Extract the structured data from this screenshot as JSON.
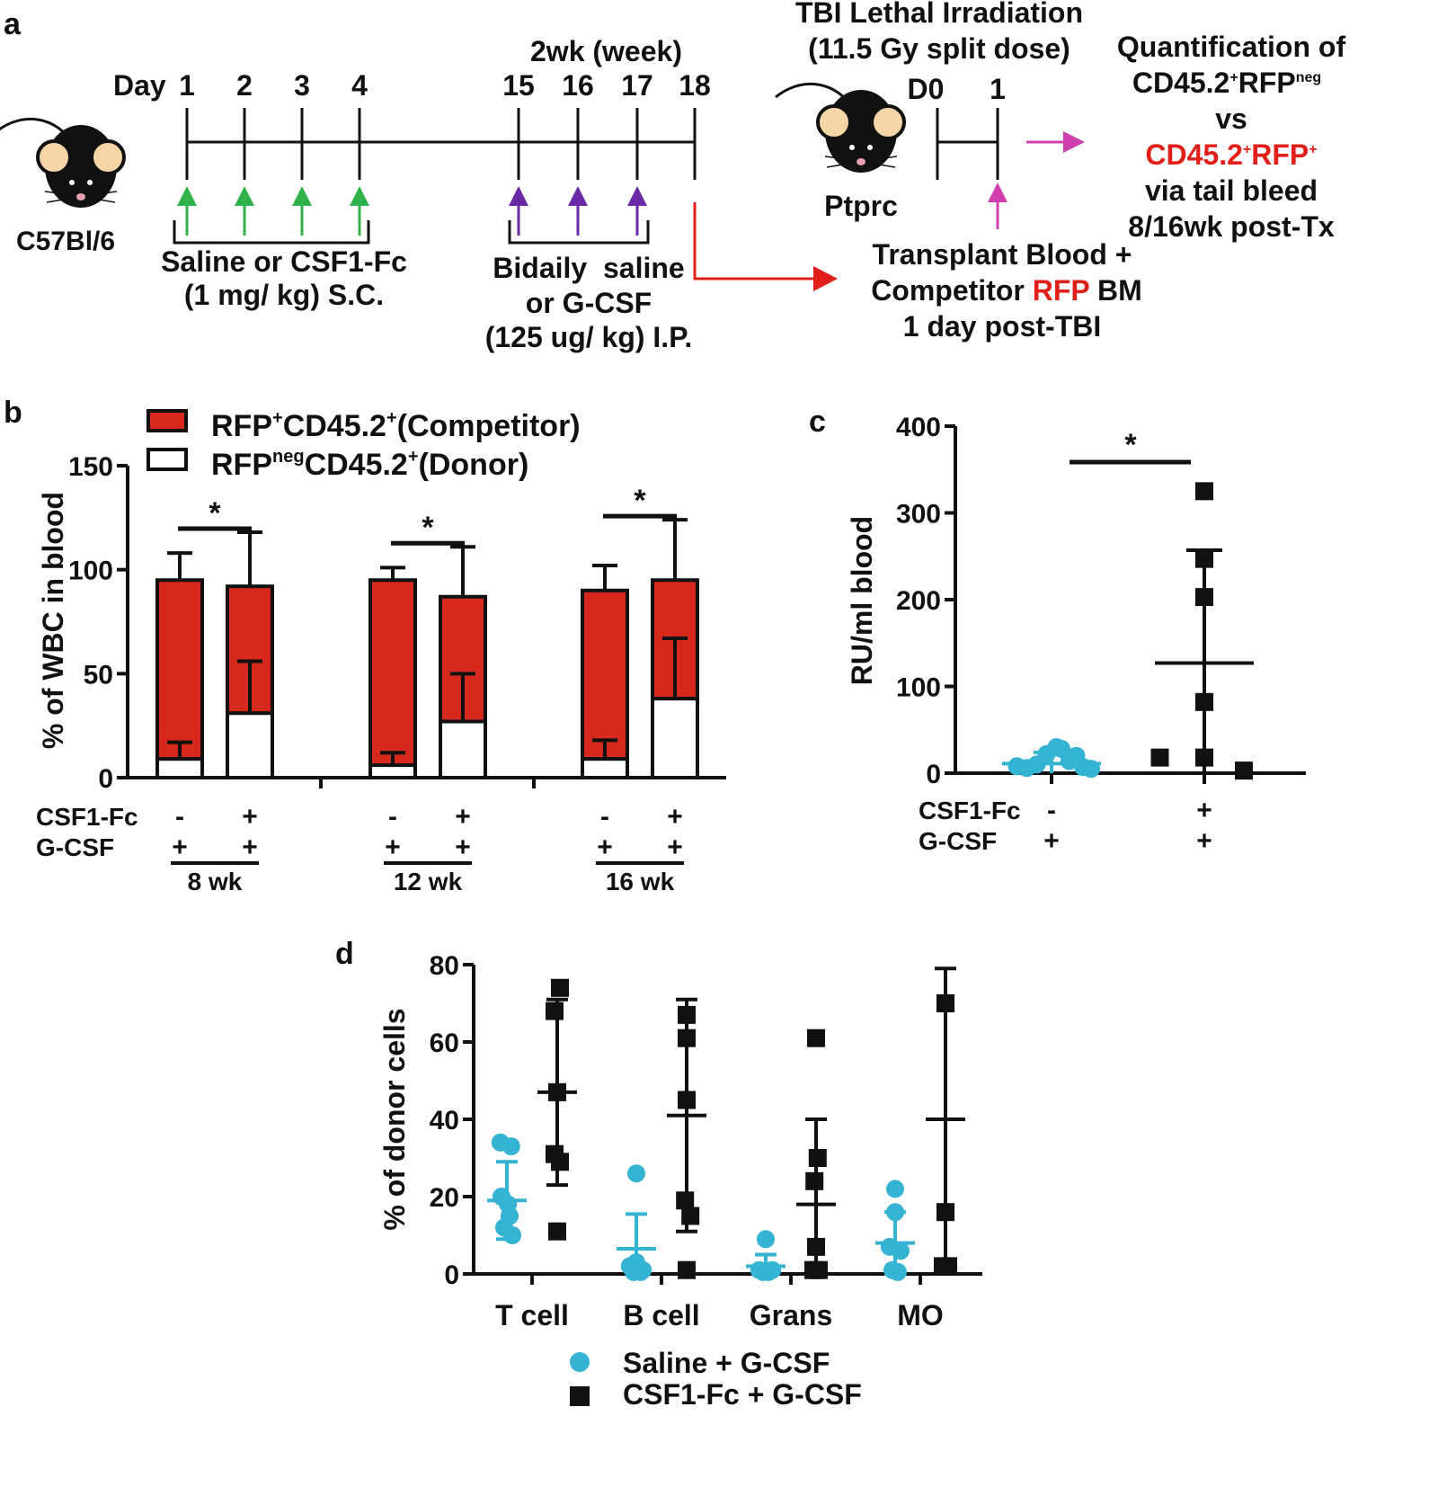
{
  "colors": {
    "red": "#d6281c",
    "cyan": "#35b3d3",
    "black": "#111111",
    "green": "#2db34a",
    "purple": "#6a2aa8",
    "magenta": "#cf3fae",
    "arrow_red": "#e02018"
  },
  "panels": {
    "a": "a",
    "b": "b",
    "c": "c",
    "d": "d"
  },
  "scheme": {
    "mouse1": "C57Bl/6",
    "day_label": "Day",
    "days": [
      "1",
      "2",
      "3",
      "4",
      "15",
      "16",
      "17",
      "18"
    ],
    "two_week": "2wk (week)",
    "saline_csf1_line1": "Saline or CSF1-Fc",
    "saline_csf1_line2": "(1 mg/ kg) S.C.",
    "bidaily_line1": "Bidaily  saline",
    "bidaily_line2": "or G-CSF",
    "bidaily_line3": "(125 ug/ kg) I.P.",
    "tbi_line1": "TBI Lethal Irradiation",
    "tbi_line2": "(11.5 Gy split dose)",
    "d0": "D0",
    "d1": "1",
    "mouse2": "Ptprc",
    "transplant_line1": "Transplant Blood +",
    "transplant_line2a": "Competitor ",
    "transplant_rfp": "RFP",
    "transplant_line2b": " BM",
    "transplant_line3": "1 day post-TBI",
    "quant_line1": "Quantification of",
    "quant_cd": "CD45.2",
    "quant_sup1": "+",
    "quant_rfp": "RFP",
    "quant_sup_neg": "neg",
    "quant_vs": "vs",
    "quant_red_cd": "CD45.2",
    "quant_red_rfp": "RFP",
    "quant_sup2": "+",
    "quant_sup3": "+",
    "quant_line4": "via tail bleed",
    "quant_line5": "8/16wk post-Tx"
  },
  "chart_data": [
    {
      "panel": "b",
      "type": "bar",
      "stacked": true,
      "ylabel": "% of WBC in blood",
      "ylim": [
        0,
        150
      ],
      "yticks": [
        "0",
        "50",
        "100",
        "150"
      ],
      "legend": {
        "competitor": {
          "a": "RFP",
          "sup1": "+",
          "b": "CD45.2",
          "sup2": "+",
          "c": "(Competitor)"
        },
        "donor": {
          "a": "RFP",
          "sup1": "neg",
          "b": "CD45.2",
          "sup2": "+",
          "c": "(Donor)"
        }
      },
      "row_labels": [
        "CSF1-Fc",
        "G-CSF"
      ],
      "groups": [
        {
          "label": "8 wk",
          "star": "*",
          "bars": [
            {
              "csf1": "-",
              "gcsf": "+",
              "donor": 9,
              "donor_err": 8,
              "total": 95,
              "total_err": 13
            },
            {
              "csf1": "+",
              "gcsf": "+",
              "donor": 31,
              "donor_err": 25,
              "total": 92,
              "total_err": 26
            }
          ]
        },
        {
          "label": "12 wk",
          "star": "*",
          "bars": [
            {
              "csf1": "-",
              "gcsf": "+",
              "donor": 6,
              "donor_err": 6,
              "total": 95,
              "total_err": 6
            },
            {
              "csf1": "+",
              "gcsf": "+",
              "donor": 27,
              "donor_err": 23,
              "total": 87,
              "total_err": 24
            }
          ]
        },
        {
          "label": "16 wk",
          "star": "*",
          "bars": [
            {
              "csf1": "-",
              "gcsf": "+",
              "donor": 9,
              "donor_err": 9,
              "total": 90,
              "total_err": 12
            },
            {
              "csf1": "+",
              "gcsf": "+",
              "donor": 38,
              "donor_err": 29,
              "total": 95,
              "total_err": 29
            }
          ]
        }
      ]
    },
    {
      "panel": "c",
      "type": "scatter",
      "ylabel": "RU/ml blood",
      "ylim": [
        0,
        400
      ],
      "yticks": [
        "0",
        "100",
        "200",
        "300",
        "400"
      ],
      "row_labels": [
        "CSF1-Fc",
        "G-CSF"
      ],
      "star": "*",
      "groups": [
        {
          "csf1": "-",
          "gcsf": "+",
          "color": "cyan",
          "marker": "circle",
          "mean": 11,
          "sd": 13,
          "points": [
            [
              -0.35,
              8
            ],
            [
              -0.25,
              6
            ],
            [
              -0.15,
              10
            ],
            [
              -0.05,
              22
            ],
            [
              0.05,
              30
            ],
            [
              0.1,
              28
            ],
            [
              0.18,
              14
            ],
            [
              0.25,
              20
            ],
            [
              0.32,
              7
            ],
            [
              0.4,
              5
            ]
          ]
        },
        {
          "csf1": "+",
          "gcsf": "+",
          "color": "black",
          "marker": "square",
          "mean": 127,
          "sd": 130,
          "points": [
            [
              -0.45,
              18
            ],
            [
              0,
              325
            ],
            [
              0,
              247
            ],
            [
              0,
              203
            ],
            [
              0,
              82
            ],
            [
              0,
              18
            ],
            [
              0.4,
              3
            ]
          ]
        }
      ]
    },
    {
      "panel": "d",
      "type": "scatter",
      "ylabel": "% of donor cells",
      "ylim": [
        0,
        80
      ],
      "yticks": [
        "0",
        "20",
        "40",
        "60",
        "80"
      ],
      "categories": [
        "T cell",
        "B cell",
        "Grans",
        "MO"
      ],
      "series": [
        {
          "name": "Saline + G-CSF",
          "color": "cyan",
          "marker": "circle",
          "groups": [
            {
              "mean": 19,
              "sd": 10,
              "points": [
                [
                  -0.12,
                  34
                ],
                [
                  0.08,
                  33
                ],
                [
                  -0.1,
                  20
                ],
                [
                  0.05,
                  15
                ],
                [
                  0.1,
                  10
                ],
                [
                  -0.05,
                  12
                ],
                [
                  0.02,
                  18
                ]
              ]
            },
            {
              "mean": 6.5,
              "sd": 9,
              "points": [
                [
                  0,
                  26
                ],
                [
                  -0.12,
                  2
                ],
                [
                  0,
                  3
                ],
                [
                  0.12,
                  1
                ],
                [
                  -0.05,
                  0.5
                ],
                [
                  0.08,
                  0.5
                ]
              ]
            },
            {
              "mean": 2,
              "sd": 3,
              "points": [
                [
                  0,
                  9
                ],
                [
                  -0.12,
                  1
                ],
                [
                  0.12,
                  1
                ],
                [
                  -0.05,
                  0.5
                ],
                [
                  0.05,
                  0.5
                ]
              ]
            },
            {
              "mean": 8,
              "sd": 8,
              "points": [
                [
                  0,
                  22
                ],
                [
                  0,
                  16
                ],
                [
                  -0.1,
                  7
                ],
                [
                  0.1,
                  6
                ],
                [
                  -0.05,
                  1
                ],
                [
                  0.05,
                  0.5
                ]
              ]
            }
          ]
        },
        {
          "name": "CSF1-Fc + G-CSF",
          "color": "black",
          "marker": "square",
          "groups": [
            {
              "mean": 47,
              "sd": 24,
              "points": [
                [
                  0.05,
                  74
                ],
                [
                  -0.05,
                  68
                ],
                [
                  0,
                  47
                ],
                [
                  -0.05,
                  31
                ],
                [
                  0.05,
                  29
                ],
                [
                  0,
                  11
                ]
              ]
            },
            {
              "mean": 41,
              "sd": 30,
              "points": [
                [
                  0,
                  67
                ],
                [
                  0,
                  61
                ],
                [
                  0,
                  45
                ],
                [
                  -0.03,
                  19
                ],
                [
                  0.07,
                  15
                ],
                [
                  0,
                  1
                ]
              ]
            },
            {
              "mean": 18,
              "sd": 22,
              "points": [
                [
                  0,
                  61
                ],
                [
                  0.03,
                  30
                ],
                [
                  -0.03,
                  24
                ],
                [
                  0,
                  7
                ],
                [
                  -0.05,
                  1
                ],
                [
                  0.05,
                  1
                ]
              ]
            },
            {
              "mean": 40,
              "sd": 39,
              "points": [
                [
                  0,
                  70
                ],
                [
                  0,
                  16
                ],
                [
                  -0.05,
                  2
                ],
                [
                  0.05,
                  2
                ]
              ]
            }
          ]
        }
      ]
    }
  ]
}
